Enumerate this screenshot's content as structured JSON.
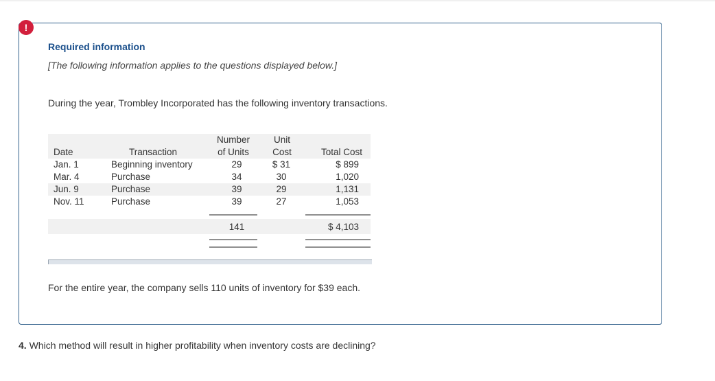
{
  "alert": {
    "symbol": "!"
  },
  "info": {
    "heading": "Required information",
    "note": "[The following information applies to the questions displayed below.]",
    "intro": "During the year, Trombley Incorporated has the following inventory transactions.",
    "sales_note": "For the entire year, the company sells 110 units of inventory for $39 each."
  },
  "table": {
    "headers": {
      "date": "Date",
      "transaction": "Transaction",
      "units_1": "Number",
      "units_2": "of Units",
      "cost_1": "Unit",
      "cost_2": "Cost",
      "total": "Total Cost"
    },
    "rows": [
      {
        "date": "Jan. 1",
        "transaction": "Beginning inventory",
        "units": "29",
        "cost": "$ 31",
        "total": "$ 899"
      },
      {
        "date": "Mar. 4",
        "transaction": "Purchase",
        "units": "34",
        "cost": "30",
        "total": "1,020"
      },
      {
        "date": "Jun. 9",
        "transaction": "Purchase",
        "units": "39",
        "cost": "29",
        "total": "1,131"
      },
      {
        "date": "Nov. 11",
        "transaction": "Purchase",
        "units": "39",
        "cost": "27",
        "total": "1,053"
      }
    ],
    "totals": {
      "units": "141",
      "total": "$ 4,103"
    }
  },
  "question": {
    "number": "4.",
    "text": "Which method will result in higher profitability when inventory costs are declining?"
  }
}
